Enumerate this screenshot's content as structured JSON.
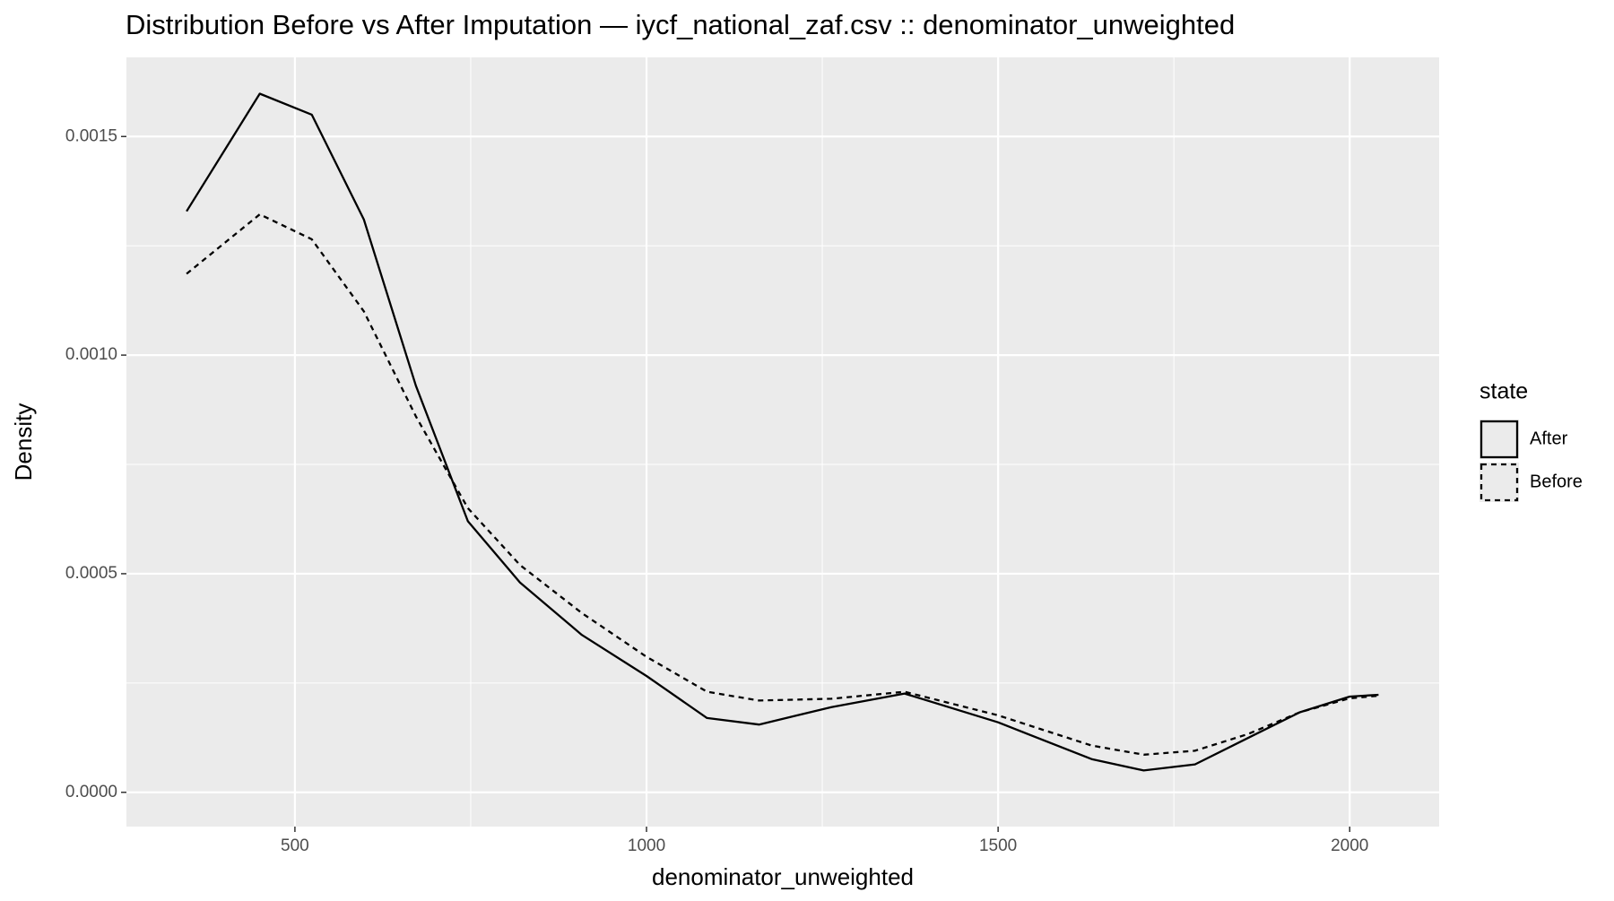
{
  "chart_data": {
    "type": "line",
    "title": "Distribution Before vs After Imputation — iycf_national_zaf.csv :: denominator_unweighted",
    "x_label": "denominator_unweighted",
    "y_label": "Density",
    "x": [
      346,
      450,
      524,
      598,
      672,
      746,
      820,
      908,
      1000,
      1086,
      1160,
      1263,
      1367,
      1500,
      1633,
      1707,
      1780,
      1855,
      1929,
      2000,
      2041
    ],
    "series": [
      {
        "name": "After",
        "color": "#000000",
        "linestyle": "solid",
        "values": [
          0.001329,
          0.001598,
          0.00155,
          0.00131,
          0.00093,
          0.00062,
          0.00048,
          0.00036,
          0.000266,
          0.00017,
          0.000155,
          0.000195,
          0.000226,
          0.00016,
          7.6e-05,
          5e-05,
          6.4e-05,
          0.000124,
          0.000183,
          0.000219,
          0.000223
        ]
      },
      {
        "name": "Before",
        "color": "#000000",
        "linestyle": "dashed",
        "values": [
          0.001186,
          0.001322,
          0.001265,
          0.0011,
          0.00086,
          0.00065,
          0.00052,
          0.00041,
          0.00031,
          0.00023,
          0.00021,
          0.000214,
          0.00023,
          0.000176,
          0.000107,
          8.6e-05,
          9.5e-05,
          0.000133,
          0.000183,
          0.000215,
          0.000221
        ]
      }
    ],
    "xlim": [
      260.4,
      2127.2
    ],
    "xticks": [
      500,
      1000,
      1500,
      2000
    ],
    "ylim": [
      -7.84e-05,
      0.001681
    ],
    "yticks": [
      {
        "value": 0,
        "label": "0.0000"
      },
      0.0005,
      {
        "value": 0.001,
        "label": "0.0010"
      },
      0.0015
    ],
    "grid": true,
    "minor_grid": true,
    "legend_title": "state",
    "legend_position": "right"
  }
}
